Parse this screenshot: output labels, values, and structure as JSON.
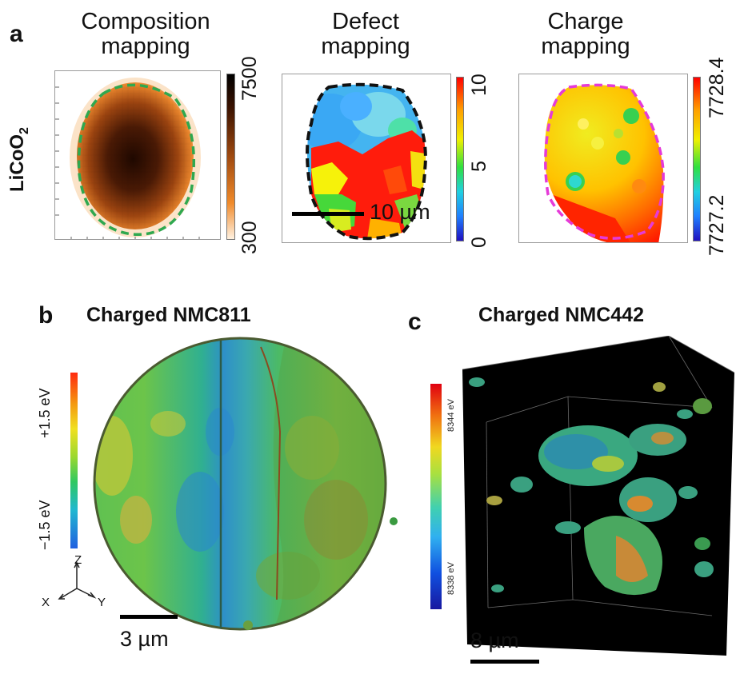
{
  "panel_a": {
    "letter": "a",
    "row_label_main": "LiCoO",
    "row_label_sub": "2",
    "composition": {
      "title_line1": "Composition",
      "title_line2": "mapping",
      "cbar_max": "7500",
      "cbar_min": "300"
    },
    "defect": {
      "title_line1": "Defect",
      "title_line2": "mapping",
      "cbar_max": "10",
      "cbar_mid": "5",
      "cbar_min": "0"
    },
    "charge": {
      "title_line1": "Charge",
      "title_line2": "mapping",
      "cbar_max": "7728.4",
      "cbar_min": "7727.2"
    },
    "scale_bar": "10 µm"
  },
  "panel_b": {
    "letter": "b",
    "title": "Charged NMC811",
    "cbar_top": "+1.5 eV",
    "cbar_bottom": "−1.5 eV",
    "axis_z": "Z",
    "axis_x": "X",
    "axis_y": "Y",
    "scale_bar": "3 µm"
  },
  "panel_c": {
    "letter": "c",
    "title": "Charged NMC442",
    "cbar_top": "8344 eV",
    "cbar_bottom": "8338 eV",
    "scale_bar": "8 µm"
  },
  "colors": {
    "composition_dark": "#2a0d02",
    "composition_light": "#f4a050",
    "outline_green": "#2fa84f",
    "outline_magenta": "#e53ad8",
    "jet_red": "#ff2000",
    "jet_blue": "#1a2cc8"
  }
}
